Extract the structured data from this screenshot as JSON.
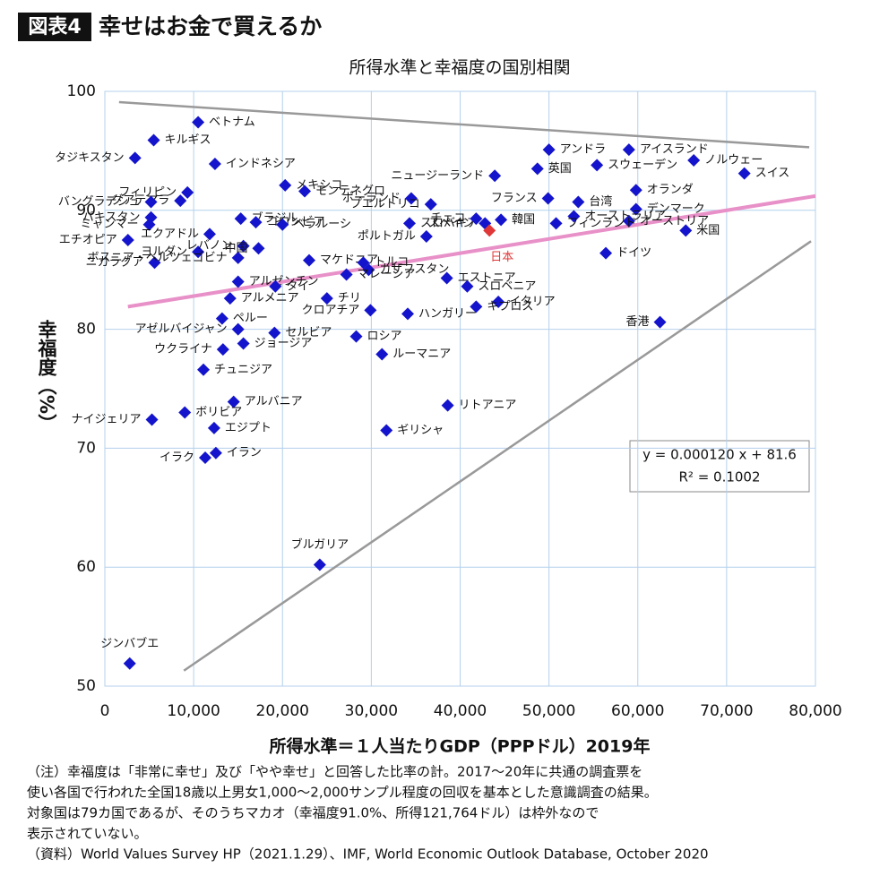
{
  "header": {
    "tag": "図表4",
    "title": "幸せはお金で買えるか"
  },
  "chart_data": {
    "type": "scatter",
    "title": "所得水準と幸福度の国別相関",
    "xlabel": "所得水準＝１人当たりGDP（PPPドル）2019年",
    "ylabel": "幸福度（%）",
    "labels": [
      "ベトナム",
      "キルギス",
      "タジキスタン",
      "インドネシア",
      "フィリピン",
      "グアテマラ",
      "バングラデシュ",
      "パキスタン",
      "ミャンマー",
      "エチオピア",
      "ニカラグア",
      "ヨルダン",
      "ボスニア・ヘルツェゴビナ",
      "レバノン",
      "ブラジル",
      "エクアドル",
      "中国",
      "コロンビア",
      "メキシコ",
      "モンテネグロ",
      "ベラルーシ",
      "マケドニア",
      "アルゼンチン",
      "タイ",
      "アルメニア",
      "チリ",
      "ポーランド",
      "プエルトリコ",
      "ニュージーランド",
      "スロバキア",
      "ポルトガル",
      "スペイン",
      "チェコ",
      "日本",
      "韓国",
      "英国",
      "アンドラ",
      "アイスランド",
      "スウェーデン",
      "ノルウェー",
      "スイス",
      "フランス",
      "台湾",
      "オランダ",
      "デンマーク",
      "オーストリア",
      "オーストラリア",
      "米国",
      "フィンランド",
      "ドイツ",
      "香港",
      "エストニア",
      "スロベニア",
      "イタリア",
      "キプロス",
      "ハンガリー",
      "トルコ",
      "カザフスタン",
      "マレーシア",
      "クロアチア",
      "セルビア",
      "ロシア",
      "ルーマニア",
      "ペルー",
      "アゼルバイジャン",
      "ジョージア",
      "ウクライナ",
      "チュニジア",
      "アルバニア",
      "ナイジェリア",
      "ボリビア",
      "エジプト",
      "イラン",
      "イラク",
      "リトアニア",
      "ギリシャ",
      "ブルガリア",
      "ジンバブエ"
    ],
    "x": [
      10500,
      5500,
      3400,
      12400,
      9300,
      8500,
      5200,
      5200,
      5000,
      2600,
      5600,
      10500,
      15000,
      15600,
      15300,
      11800,
      17300,
      17000,
      20300,
      22500,
      20000,
      23000,
      15000,
      19200,
      14100,
      25000,
      34500,
      36700,
      43900,
      34300,
      36200,
      42800,
      41800,
      43300,
      44600,
      48700,
      50000,
      59000,
      55400,
      66300,
      72000,
      49900,
      53300,
      59800,
      59800,
      59000,
      52800,
      65400,
      50800,
      56400,
      62500,
      38500,
      40800,
      44300,
      41800,
      34100,
      29100,
      29700,
      27200,
      29900,
      19100,
      28300,
      31200,
      13200,
      15000,
      15600,
      13300,
      11100,
      14500,
      5300,
      9000,
      12300,
      12500,
      11300,
      38600,
      31700,
      24200,
      2800
    ],
    "y": [
      97.4,
      95.9,
      94.4,
      93.9,
      91.5,
      90.8,
      90.7,
      89.4,
      88.8,
      87.5,
      85.6,
      86.5,
      86.0,
      87.0,
      89.3,
      88.0,
      86.8,
      89.0,
      92.1,
      91.6,
      88.8,
      85.8,
      84.0,
      83.6,
      82.6,
      82.6,
      91.0,
      90.5,
      92.9,
      88.9,
      87.8,
      88.9,
      89.3,
      88.3,
      89.2,
      93.5,
      95.1,
      95.1,
      93.8,
      94.2,
      93.1,
      91.0,
      90.7,
      91.7,
      90.1,
      89.1,
      89.5,
      88.3,
      88.9,
      86.4,
      80.6,
      84.3,
      83.6,
      82.3,
      81.9,
      81.3,
      85.6,
      85.0,
      84.6,
      81.6,
      79.7,
      79.4,
      77.9,
      80.9,
      80.0,
      78.8,
      78.3,
      76.6,
      73.9,
      72.4,
      73.0,
      71.7,
      69.6,
      69.2,
      73.6,
      71.5,
      60.2,
      51.9
    ],
    "colors": [
      "#1414cc",
      "#1414cc",
      "#1414cc",
      "#1414cc",
      "#1414cc",
      "#1414cc",
      "#1414cc",
      "#1414cc",
      "#1414cc",
      "#1414cc",
      "#1414cc",
      "#1414cc",
      "#1414cc",
      "#1414cc",
      "#1414cc",
      "#1414cc",
      "#1414cc",
      "#1414cc",
      "#1414cc",
      "#1414cc",
      "#1414cc",
      "#1414cc",
      "#1414cc",
      "#1414cc",
      "#1414cc",
      "#1414cc",
      "#1414cc",
      "#1414cc",
      "#1414cc",
      "#1414cc",
      "#1414cc",
      "#1414cc",
      "#1414cc",
      "#e03838",
      "#1414cc",
      "#1414cc",
      "#1414cc",
      "#1414cc",
      "#1414cc",
      "#1414cc",
      "#1414cc",
      "#1414cc",
      "#1414cc",
      "#1414cc",
      "#1414cc",
      "#1414cc",
      "#1414cc",
      "#1414cc",
      "#1414cc",
      "#1414cc",
      "#1414cc",
      "#1414cc",
      "#1414cc",
      "#1414cc",
      "#1414cc",
      "#1414cc",
      "#1414cc",
      "#1414cc",
      "#1414cc",
      "#1414cc",
      "#1414cc",
      "#1414cc",
      "#1414cc",
      "#1414cc",
      "#1414cc",
      "#1414cc",
      "#1414cc",
      "#1414cc",
      "#1414cc",
      "#1414cc",
      "#1414cc",
      "#1414cc",
      "#1414cc",
      "#1414cc",
      "#1414cc",
      "#1414cc",
      "#1414cc",
      "#1414cc"
    ],
    "trend_lines": [
      {
        "x": [
          1600,
          79300
        ],
        "y": [
          99.1,
          95.3
        ],
        "color": "#999999"
      },
      {
        "x": [
          8900,
          79500
        ],
        "y": [
          51.3,
          87.4
        ],
        "color": "#999999"
      },
      {
        "x": [
          2600,
          80000
        ],
        "y": [
          81.9,
          91.2
        ],
        "color": "#e890c8"
      }
    ],
    "annotations": [
      "y = 0.000120 x + 81.6",
      "R² = 0.1002"
    ],
    "xlim": [
      0,
      80000
    ],
    "xticks": [
      0,
      {
        "value": 10000,
        "label": "10,000"
      },
      {
        "value": 20000,
        "label": "20,000"
      },
      {
        "value": 30000,
        "label": "30,000"
      },
      {
        "value": 40000,
        "label": "40,000"
      },
      {
        "value": 50000,
        "label": "50,000"
      },
      {
        "value": 60000,
        "label": "60,000"
      },
      {
        "value": 70000,
        "label": "70,000"
      },
      {
        "value": 80000,
        "label": "80,000"
      }
    ],
    "ylim": [
      50,
      100
    ],
    "yticks": [
      50,
      60,
      70,
      80,
      90,
      100
    ],
    "grid": true
  },
  "notes": [
    "（注）幸福度は「非常に幸せ」及び「やや幸せ」と回答した比率の計。2017〜20年に共通の調査票を",
    "使い各国で行われた全国18歳以上男女1,000〜2,000サンプル程度の回収を基本とした意識調査の結果。",
    "対象国は79カ国であるが、そのうちマカオ（幸福度91.0%、所得121,764ドル）は枠外なので",
    "表示されていない。",
    "（資料）World Values Survey HP（2021.1.29）、IMF, World Economic Outlook Database, October 2020"
  ]
}
